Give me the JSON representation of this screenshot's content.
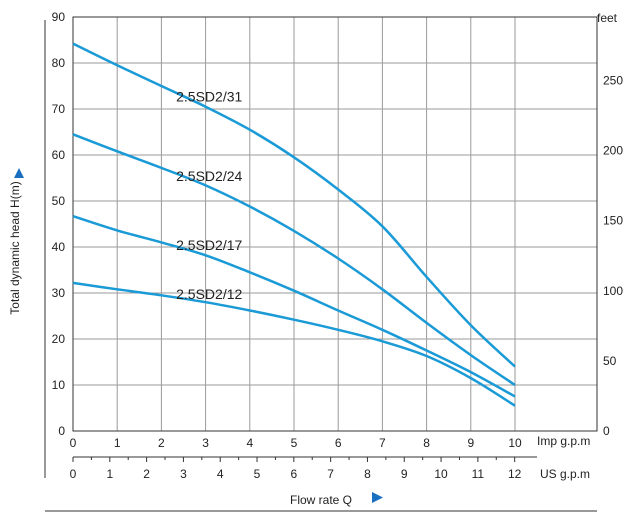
{
  "chart_data": {
    "type": "line",
    "ylabel": "Total dynamic head H(m)",
    "ylabel_right": "feet",
    "xlabel": "Flow rate Q",
    "x_unit_top": "Imp g.p.m",
    "x_unit_bottom": "US g.p.m",
    "xlim": [
      0,
      10.5
    ],
    "ylim": [
      0,
      90
    ],
    "ylim_feet": [
      0,
      295.3
    ],
    "x_ticks_imp": [
      0,
      1,
      2,
      3,
      4,
      5,
      6,
      7,
      8,
      9,
      10
    ],
    "x_ticks_us": [
      0,
      1,
      2,
      3,
      4,
      5,
      6,
      7,
      8,
      9,
      10,
      11,
      12
    ],
    "y_ticks_m": [
      0,
      10,
      20,
      30,
      40,
      50,
      60,
      70,
      80,
      90
    ],
    "y_ticks_feet": [
      0,
      50,
      100,
      150,
      200,
      250
    ],
    "grid": true,
    "line_color": "#1a9ad6",
    "series": [
      {
        "name": "2.5SD2/31",
        "x": [
          0,
          1,
          2,
          3,
          4,
          5,
          6,
          7,
          8,
          9,
          10
        ],
        "y": [
          84.2,
          79.5,
          75,
          70.5,
          65.5,
          59.5,
          52.5,
          44.5,
          33.5,
          23,
          14
        ]
      },
      {
        "name": "2.5SD2/24",
        "x": [
          0,
          1,
          2,
          3,
          4,
          5,
          6,
          7,
          8,
          9,
          10
        ],
        "y": [
          64.5,
          60.8,
          57.2,
          53.4,
          48.8,
          43.5,
          37.5,
          30.8,
          23.5,
          16.5,
          10
        ]
      },
      {
        "name": "2.5SD2/17",
        "x": [
          0,
          1,
          2,
          3,
          4,
          5,
          6,
          7,
          8,
          9,
          10
        ],
        "y": [
          46.7,
          43.6,
          41,
          38.2,
          34.5,
          30.5,
          26.2,
          22,
          17.5,
          12.8,
          7.5
        ]
      },
      {
        "name": "2.5SD2/12",
        "x": [
          0,
          1,
          2,
          3,
          4,
          5,
          6,
          7,
          8,
          9,
          10
        ],
        "y": [
          32.2,
          30.8,
          29.5,
          28,
          26.2,
          24.2,
          22,
          19.5,
          16.3,
          11.5,
          5.5
        ]
      }
    ]
  }
}
